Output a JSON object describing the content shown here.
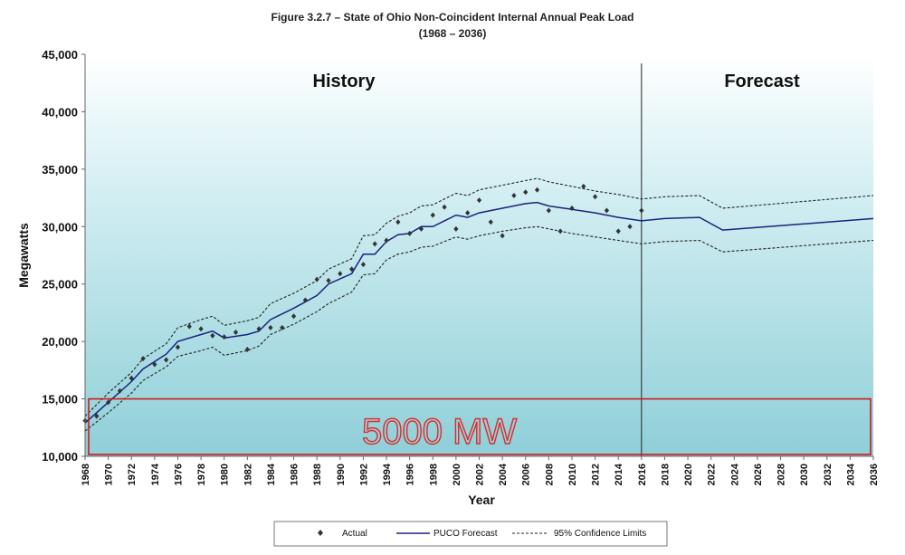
{
  "chart_data": {
    "type": "line",
    "title": "Figure 3.2.7 – State of Ohio Non-Coincident Internal Annual Peak Load",
    "subtitle": "(1968 – 2036)",
    "xlabel": "Year",
    "ylabel": "Megawatts",
    "xlim": [
      1968,
      2036
    ],
    "ylim": [
      10000,
      45000
    ],
    "y_ticks": [
      "10,000",
      "15,000",
      "20,000",
      "25,000",
      "30,000",
      "35,000",
      "40,000",
      "45,000"
    ],
    "y_tick_values": [
      10000,
      15000,
      20000,
      25000,
      30000,
      35000,
      40000,
      45000
    ],
    "x_ticks": [
      "1968",
      "1970",
      "1972",
      "1974",
      "1976",
      "1978",
      "1980",
      "1982",
      "1984",
      "1986",
      "1988",
      "1990",
      "1992",
      "1994",
      "1996",
      "1998",
      "2000",
      "2002",
      "2004",
      "2006",
      "2008",
      "2010",
      "2012",
      "2014",
      "2016",
      "2018",
      "2020",
      "2022",
      "2024",
      "2026",
      "2028",
      "2030",
      "2032",
      "2034",
      "2036"
    ],
    "regions": [
      {
        "label": "History"
      },
      {
        "label": "Forecast"
      }
    ],
    "divider_year": 2016,
    "annotation": {
      "text": "5000 MW",
      "y_range": [
        10000,
        15000
      ]
    },
    "series": [
      {
        "name": "Actual",
        "style": "markers",
        "points": [
          [
            1968,
            13100
          ],
          [
            1969,
            13500
          ],
          [
            1970,
            14700
          ],
          [
            1971,
            15700
          ],
          [
            1972,
            16800
          ],
          [
            1973,
            18500
          ],
          [
            1974,
            18000
          ],
          [
            1975,
            18400
          ],
          [
            1976,
            19500
          ],
          [
            1977,
            21300
          ],
          [
            1978,
            21100
          ],
          [
            1979,
            20500
          ],
          [
            1980,
            20400
          ],
          [
            1981,
            20800
          ],
          [
            1982,
            19300
          ],
          [
            1983,
            21100
          ],
          [
            1984,
            21200
          ],
          [
            1985,
            21200
          ],
          [
            1986,
            22200
          ],
          [
            1987,
            23600
          ],
          [
            1988,
            25400
          ],
          [
            1989,
            25300
          ],
          [
            1990,
            25900
          ],
          [
            1991,
            26300
          ],
          [
            1992,
            26700
          ],
          [
            1993,
            28500
          ],
          [
            1994,
            28800
          ],
          [
            1995,
            30400
          ],
          [
            1996,
            29400
          ],
          [
            1997,
            29800
          ],
          [
            1998,
            31000
          ],
          [
            1999,
            31700
          ],
          [
            2000,
            29800
          ],
          [
            2001,
            31200
          ],
          [
            2002,
            32300
          ],
          [
            2003,
            30400
          ],
          [
            2004,
            29200
          ],
          [
            2005,
            32700
          ],
          [
            2006,
            33000
          ],
          [
            2007,
            33200
          ],
          [
            2008,
            31400
          ],
          [
            2009,
            29600
          ],
          [
            2010,
            31600
          ],
          [
            2011,
            33500
          ],
          [
            2012,
            32600
          ],
          [
            2013,
            31400
          ],
          [
            2014,
            29600
          ],
          [
            2015,
            30000
          ],
          [
            2016,
            31400
          ]
        ]
      },
      {
        "name": "PUCO Forecast",
        "style": "solid",
        "points": [
          [
            1968,
            12900
          ],
          [
            1970,
            14700
          ],
          [
            1972,
            16500
          ],
          [
            1973,
            17600
          ],
          [
            1975,
            18900
          ],
          [
            1976,
            20000
          ],
          [
            1978,
            20600
          ],
          [
            1979,
            20900
          ],
          [
            1980,
            20300
          ],
          [
            1982,
            20600
          ],
          [
            1983,
            20900
          ],
          [
            1984,
            21900
          ],
          [
            1986,
            22900
          ],
          [
            1988,
            24000
          ],
          [
            1989,
            25000
          ],
          [
            1991,
            25900
          ],
          [
            1992,
            27600
          ],
          [
            1993,
            27600
          ],
          [
            1994,
            28700
          ],
          [
            1995,
            29300
          ],
          [
            1996,
            29400
          ],
          [
            1997,
            30000
          ],
          [
            1998,
            30000
          ],
          [
            1999,
            30500
          ],
          [
            2000,
            31000
          ],
          [
            2001,
            30800
          ],
          [
            2002,
            31200
          ],
          [
            2004,
            31600
          ],
          [
            2006,
            32000
          ],
          [
            2007,
            32100
          ],
          [
            2008,
            31800
          ],
          [
            2010,
            31500
          ],
          [
            2012,
            31200
          ],
          [
            2014,
            30800
          ],
          [
            2016,
            30500
          ],
          [
            2018,
            30700
          ],
          [
            2021,
            30800
          ],
          [
            2023,
            29700
          ],
          [
            2036,
            30700
          ]
        ]
      },
      {
        "name": "95% Confidence Limits",
        "style": "dashed",
        "upper": [
          [
            1968,
            13500
          ],
          [
            1970,
            15500
          ],
          [
            1972,
            17300
          ],
          [
            1973,
            18500
          ],
          [
            1975,
            19800
          ],
          [
            1976,
            21200
          ],
          [
            1978,
            21900
          ],
          [
            1979,
            22200
          ],
          [
            1980,
            21400
          ],
          [
            1982,
            21800
          ],
          [
            1983,
            22100
          ],
          [
            1984,
            23300
          ],
          [
            1986,
            24200
          ],
          [
            1988,
            25300
          ],
          [
            1989,
            26300
          ],
          [
            1991,
            27200
          ],
          [
            1992,
            29200
          ],
          [
            1993,
            29300
          ],
          [
            1994,
            30300
          ],
          [
            1995,
            30900
          ],
          [
            1996,
            31200
          ],
          [
            1997,
            31800
          ],
          [
            1998,
            31900
          ],
          [
            1999,
            32400
          ],
          [
            2000,
            32900
          ],
          [
            2001,
            32700
          ],
          [
            2002,
            33200
          ],
          [
            2004,
            33600
          ],
          [
            2006,
            34000
          ],
          [
            2007,
            34200
          ],
          [
            2008,
            33900
          ],
          [
            2010,
            33500
          ],
          [
            2012,
            33100
          ],
          [
            2014,
            32800
          ],
          [
            2016,
            32400
          ],
          [
            2018,
            32600
          ],
          [
            2021,
            32700
          ],
          [
            2023,
            31600
          ],
          [
            2036,
            32700
          ]
        ],
        "lower": [
          [
            1968,
            12200
          ],
          [
            1970,
            13800
          ],
          [
            1972,
            15500
          ],
          [
            1973,
            16600
          ],
          [
            1975,
            17800
          ],
          [
            1976,
            18700
          ],
          [
            1978,
            19200
          ],
          [
            1979,
            19500
          ],
          [
            1980,
            18800
          ],
          [
            1982,
            19200
          ],
          [
            1983,
            19600
          ],
          [
            1984,
            20600
          ],
          [
            1986,
            21500
          ],
          [
            1988,
            22600
          ],
          [
            1989,
            23300
          ],
          [
            1991,
            24300
          ],
          [
            1992,
            25800
          ],
          [
            1993,
            25900
          ],
          [
            1994,
            27100
          ],
          [
            1995,
            27600
          ],
          [
            1996,
            27800
          ],
          [
            1997,
            28200
          ],
          [
            1998,
            28300
          ],
          [
            1999,
            28700
          ],
          [
            2000,
            29100
          ],
          [
            2001,
            28900
          ],
          [
            2002,
            29200
          ],
          [
            2004,
            29600
          ],
          [
            2006,
            29900
          ],
          [
            2007,
            30000
          ],
          [
            2008,
            29800
          ],
          [
            2010,
            29400
          ],
          [
            2012,
            29100
          ],
          [
            2014,
            28800
          ],
          [
            2016,
            28500
          ],
          [
            2018,
            28700
          ],
          [
            2021,
            28800
          ],
          [
            2023,
            27800
          ],
          [
            2036,
            28800
          ]
        ]
      }
    ],
    "legend": {
      "position": "bottom-center",
      "entries": [
        "Actual",
        "PUCO Forecast",
        "95% Confidence Limits"
      ]
    },
    "colors": {
      "forecast": "#1a237e",
      "markers": "#333333",
      "confidence": "#222222",
      "annotation": "#e02a2a",
      "bg_top": "#ffffff",
      "bg_bottom": "#8fcfd8"
    }
  }
}
